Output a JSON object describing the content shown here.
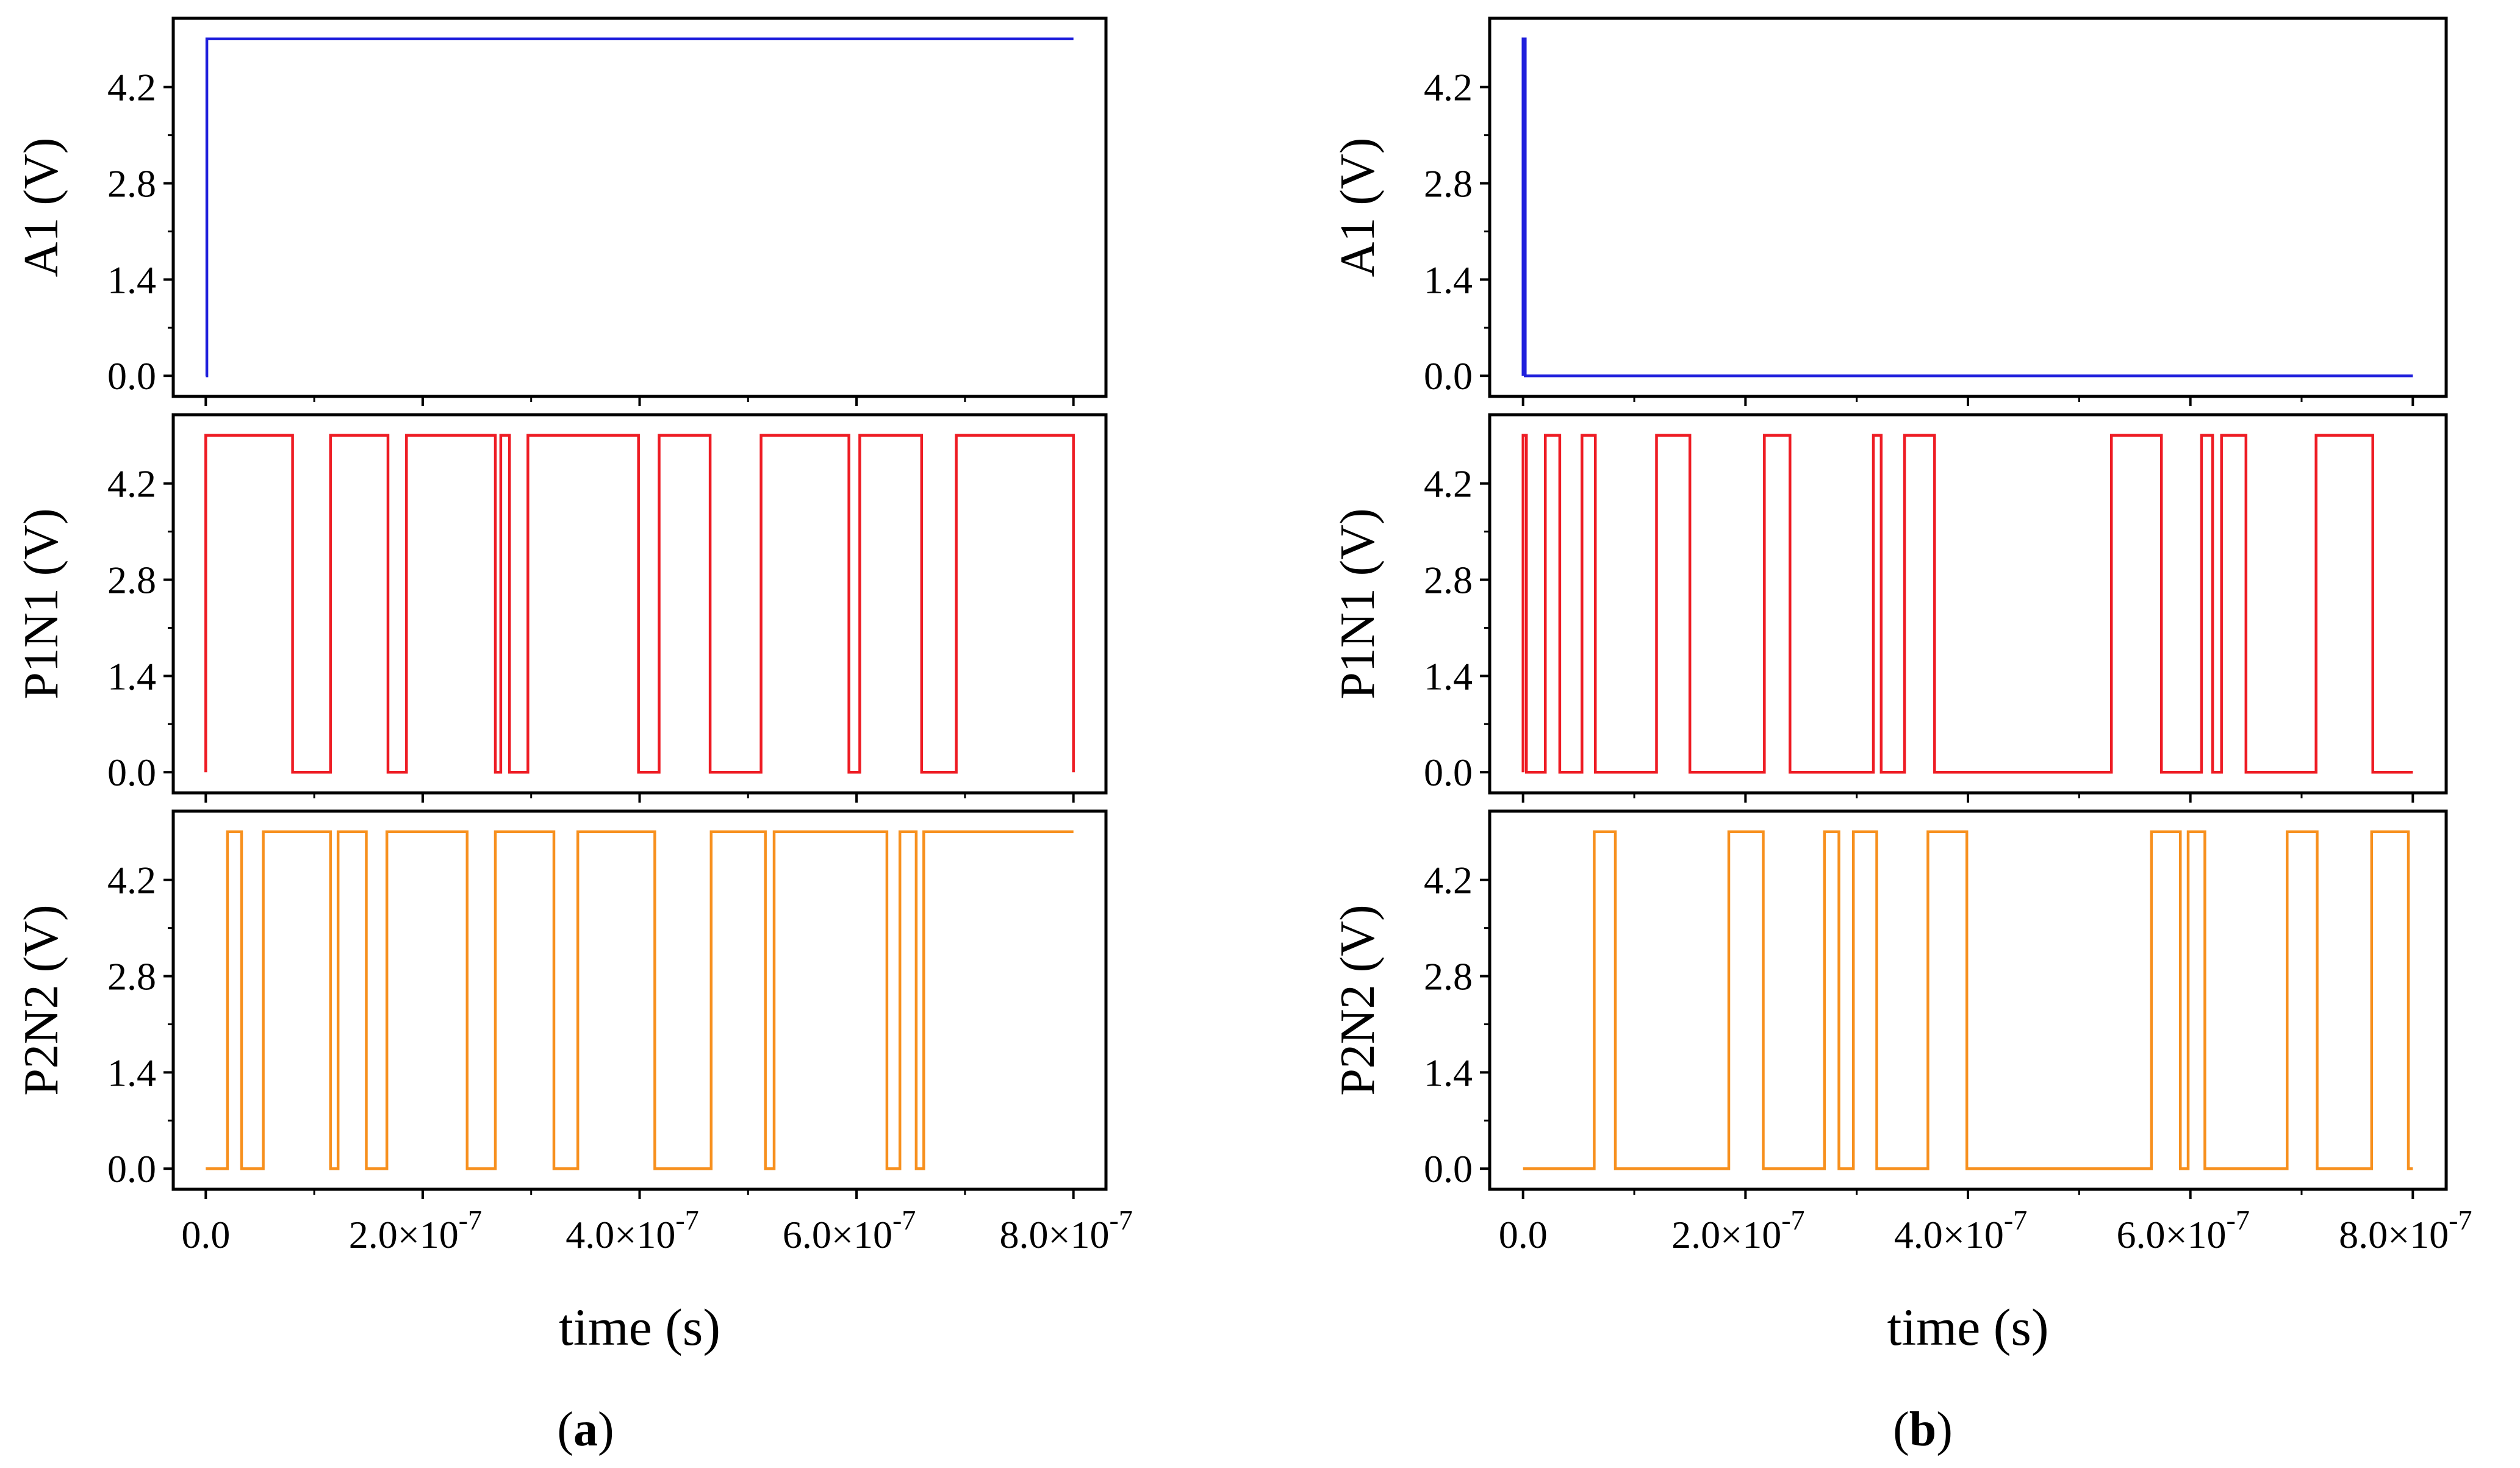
{
  "colors": {
    "A1": "#1f1fdc",
    "P1N1": "#ee1c24",
    "P2N2": "#f7901e",
    "axis": "#000000"
  },
  "chart_data": [
    {
      "type": "line",
      "panel_label": "a",
      "xlabel": "time (s)",
      "xlim": [
        -3e-08,
        8.3e-07
      ],
      "xticks": [
        0,
        2e-07,
        4e-07,
        6e-07,
        8e-07
      ],
      "xtick_labels": [
        {
          "m": "0.0",
          "e": ""
        },
        {
          "m": "2.0×10",
          "e": "-7"
        },
        {
          "m": "4.0×10",
          "e": "-7"
        },
        {
          "m": "6.0×10",
          "e": "-7"
        },
        {
          "m": "8.0×10",
          "e": "-7"
        }
      ],
      "series": [
        {
          "name": "A1",
          "ylabel": "A1 (V)",
          "ylim": [
            -0.3,
            5.2
          ],
          "yticks": [
            "0.0",
            "1.4",
            "2.8",
            "4.2"
          ],
          "x": [
            0,
            1e-09,
            1e-09,
            8e-07
          ],
          "y": [
            0,
            0,
            4.9,
            4.9
          ]
        },
        {
          "name": "P1N1",
          "ylabel": "P1N1 (V)",
          "ylim": [
            -0.3,
            5.2
          ],
          "yticks": [
            "0.0",
            "1.4",
            "2.8",
            "4.2"
          ],
          "x": [
            0,
            0,
            8e-08,
            8e-08,
            1.15e-07,
            1.15e-07,
            1.68e-07,
            1.68e-07,
            1.85e-07,
            1.85e-07,
            2.67e-07,
            2.67e-07,
            2.72e-07,
            2.72e-07,
            2.8e-07,
            2.8e-07,
            2.97e-07,
            2.97e-07,
            3.99e-07,
            3.99e-07,
            4.18e-07,
            4.18e-07,
            4.65e-07,
            4.65e-07,
            5.12e-07,
            5.12e-07,
            5.93e-07,
            5.93e-07,
            6.03e-07,
            6.03e-07,
            6.6e-07,
            6.6e-07,
            6.92e-07,
            6.92e-07,
            8e-07,
            8e-07
          ],
          "y": [
            0,
            4.9,
            4.9,
            0,
            0,
            4.9,
            4.9,
            0,
            0,
            4.9,
            4.9,
            0,
            0,
            4.9,
            4.9,
            0,
            0,
            4.9,
            4.9,
            0,
            0,
            4.9,
            4.9,
            0,
            0,
            4.9,
            4.9,
            0,
            0,
            4.9,
            4.9,
            0,
            0,
            4.9,
            4.9,
            0
          ]
        },
        {
          "name": "P2N2",
          "ylabel": "P2N2 (V)",
          "ylim": [
            -0.3,
            5.2
          ],
          "yticks": [
            "0.0",
            "1.4",
            "2.8",
            "4.2"
          ],
          "x": [
            0,
            2e-08,
            2e-08,
            3.3e-08,
            3.3e-08,
            5.3e-08,
            5.3e-08,
            1.15e-07,
            1.15e-07,
            1.22e-07,
            1.22e-07,
            1.48e-07,
            1.48e-07,
            1.67e-07,
            1.67e-07,
            2.41e-07,
            2.41e-07,
            2.67e-07,
            2.67e-07,
            3.21e-07,
            3.21e-07,
            3.43e-07,
            3.43e-07,
            4.14e-07,
            4.14e-07,
            4.66e-07,
            4.66e-07,
            5.16e-07,
            5.16e-07,
            5.24e-07,
            5.24e-07,
            6.28e-07,
            6.28e-07,
            6.4e-07,
            6.4e-07,
            6.55e-07,
            6.55e-07,
            6.62e-07,
            6.62e-07,
            8e-07
          ],
          "y": [
            0,
            0,
            4.9,
            4.9,
            0,
            0,
            4.9,
            4.9,
            0,
            0,
            4.9,
            4.9,
            0,
            0,
            4.9,
            4.9,
            0,
            0,
            4.9,
            4.9,
            0,
            0,
            4.9,
            4.9,
            0,
            0,
            4.9,
            4.9,
            0,
            0,
            4.9,
            4.9,
            0,
            0,
            4.9,
            4.9,
            0,
            0,
            4.9,
            4.9
          ]
        }
      ]
    },
    {
      "type": "line",
      "panel_label": "b",
      "xlabel": "time (s)",
      "xlim": [
        -3e-08,
        8.3e-07
      ],
      "xticks": [
        0,
        2e-07,
        4e-07,
        6e-07,
        8e-07
      ],
      "xtick_labels": [
        {
          "m": "0.0",
          "e": ""
        },
        {
          "m": "2.0×10",
          "e": "-7"
        },
        {
          "m": "4.0×10",
          "e": "-7"
        },
        {
          "m": "6.0×10",
          "e": "-7"
        },
        {
          "m": "8.0×10",
          "e": "-7"
        }
      ],
      "series": [
        {
          "name": "A1",
          "ylabel": "A1 (V)",
          "ylim": [
            -0.3,
            5.2
          ],
          "yticks": [
            "0.0",
            "1.4",
            "2.8",
            "4.2"
          ],
          "x": [
            0,
            0,
            2e-09,
            2e-09,
            8e-07
          ],
          "y": [
            0,
            4.9,
            4.9,
            0,
            0
          ]
        },
        {
          "name": "P1N1",
          "ylabel": "P1N1 (V)",
          "ylim": [
            -0.3,
            5.2
          ],
          "yticks": [
            "0.0",
            "1.4",
            "2.8",
            "4.2"
          ],
          "x": [
            0,
            0,
            3e-09,
            3e-09,
            2e-08,
            2e-08,
            3.3e-08,
            3.3e-08,
            5.3e-08,
            5.3e-08,
            6.5e-08,
            6.5e-08,
            1.2e-07,
            1.2e-07,
            1.5e-07,
            1.5e-07,
            2.17e-07,
            2.17e-07,
            2.4e-07,
            2.4e-07,
            3.15e-07,
            3.15e-07,
            3.22e-07,
            3.22e-07,
            3.43e-07,
            3.43e-07,
            3.7e-07,
            3.7e-07,
            5.29e-07,
            5.29e-07,
            5.74e-07,
            5.74e-07,
            6.1e-07,
            6.1e-07,
            6.2e-07,
            6.2e-07,
            6.28e-07,
            6.28e-07,
            6.5e-07,
            6.5e-07,
            7.13e-07,
            7.13e-07,
            7.64e-07,
            7.64e-07,
            8e-07
          ],
          "y": [
            0,
            4.9,
            4.9,
            0,
            0,
            4.9,
            4.9,
            0,
            0,
            4.9,
            4.9,
            0,
            0,
            4.9,
            4.9,
            0,
            0,
            4.9,
            4.9,
            0,
            0,
            4.9,
            4.9,
            0,
            0,
            4.9,
            4.9,
            0,
            0,
            4.9,
            4.9,
            0,
            0,
            4.9,
            4.9,
            0,
            0,
            4.9,
            4.9,
            0,
            0,
            4.9,
            4.9,
            0,
            0
          ]
        },
        {
          "name": "P2N2",
          "ylabel": "P2N2 (V)",
          "ylim": [
            -0.3,
            5.2
          ],
          "yticks": [
            "0.0",
            "1.4",
            "2.8",
            "4.2"
          ],
          "x": [
            0,
            6.4e-08,
            6.4e-08,
            8.3e-08,
            8.3e-08,
            1.85e-07,
            1.85e-07,
            2.16e-07,
            2.16e-07,
            2.71e-07,
            2.71e-07,
            2.84e-07,
            2.84e-07,
            2.97e-07,
            2.97e-07,
            3.18e-07,
            3.18e-07,
            3.64e-07,
            3.64e-07,
            3.99e-07,
            3.99e-07,
            5.65e-07,
            5.65e-07,
            5.91e-07,
            5.91e-07,
            5.98e-07,
            5.98e-07,
            6.13e-07,
            6.13e-07,
            6.87e-07,
            6.87e-07,
            7.14e-07,
            7.14e-07,
            7.63e-07,
            7.63e-07,
            7.96e-07,
            7.96e-07,
            8e-07
          ],
          "y": [
            0,
            0,
            4.9,
            4.9,
            0,
            0,
            4.9,
            4.9,
            0,
            0,
            4.9,
            4.9,
            0,
            0,
            4.9,
            4.9,
            0,
            0,
            4.9,
            4.9,
            0,
            0,
            4.9,
            4.9,
            0,
            0,
            4.9,
            4.9,
            0,
            0,
            4.9,
            4.9,
            0,
            0,
            4.9,
            4.9,
            0,
            0
          ]
        }
      ]
    }
  ]
}
